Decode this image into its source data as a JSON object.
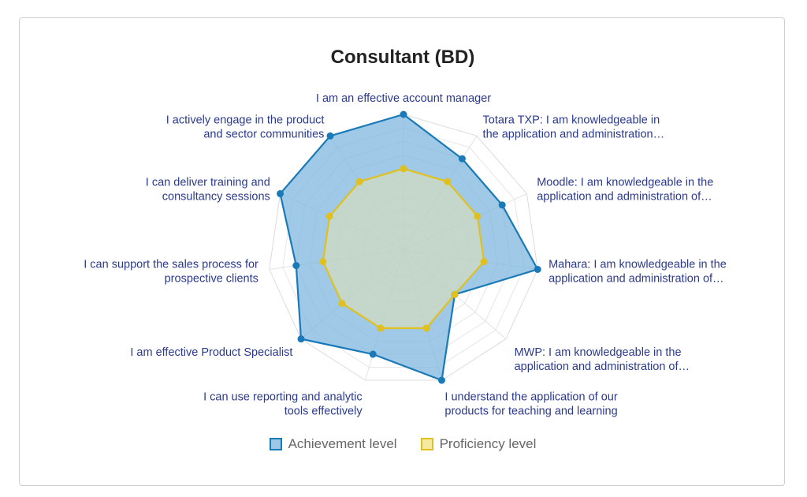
{
  "chart_data": {
    "type": "radar",
    "title": "Consultant (BD)",
    "axes": [
      [
        "I am an effective account manager"
      ],
      [
        "Totara TXP: I am knowledgeable in",
        "the application and administration…"
      ],
      [
        "Moodle: I am knowledgeable in the",
        "application and administration of…"
      ],
      [
        "Mahara: I am knowledgeable in the",
        "application and administration of…"
      ],
      [
        "MWP: I am knowledgeable in the",
        "application and administration of…"
      ],
      [
        "I understand the application of our",
        "products for teaching and learning"
      ],
      [
        "I can use reporting and analytic",
        "tools effectively"
      ],
      [
        "I am effective Product Specialist"
      ],
      [
        "I can support the sales process for",
        "prospective clients"
      ],
      [
        "I can deliver training and",
        "consultancy sessions"
      ],
      [
        "I actively engage in the product",
        "and sector communities"
      ]
    ],
    "rmax": 5,
    "grid": true,
    "series": [
      {
        "name": "Achievement level",
        "values": [
          5,
          4,
          4,
          5,
          2.5,
          5,
          4,
          5,
          4,
          5,
          5
        ],
        "stroke": "#1a7ab8",
        "fill": "#7fb7dd"
      },
      {
        "name": "Proficiency level",
        "values": [
          3,
          3,
          3,
          3,
          2.5,
          3,
          3,
          3,
          3,
          3,
          3
        ],
        "stroke": "#e0c020",
        "fill": "#f5e9a8"
      }
    ],
    "legend_position": "bottom"
  }
}
